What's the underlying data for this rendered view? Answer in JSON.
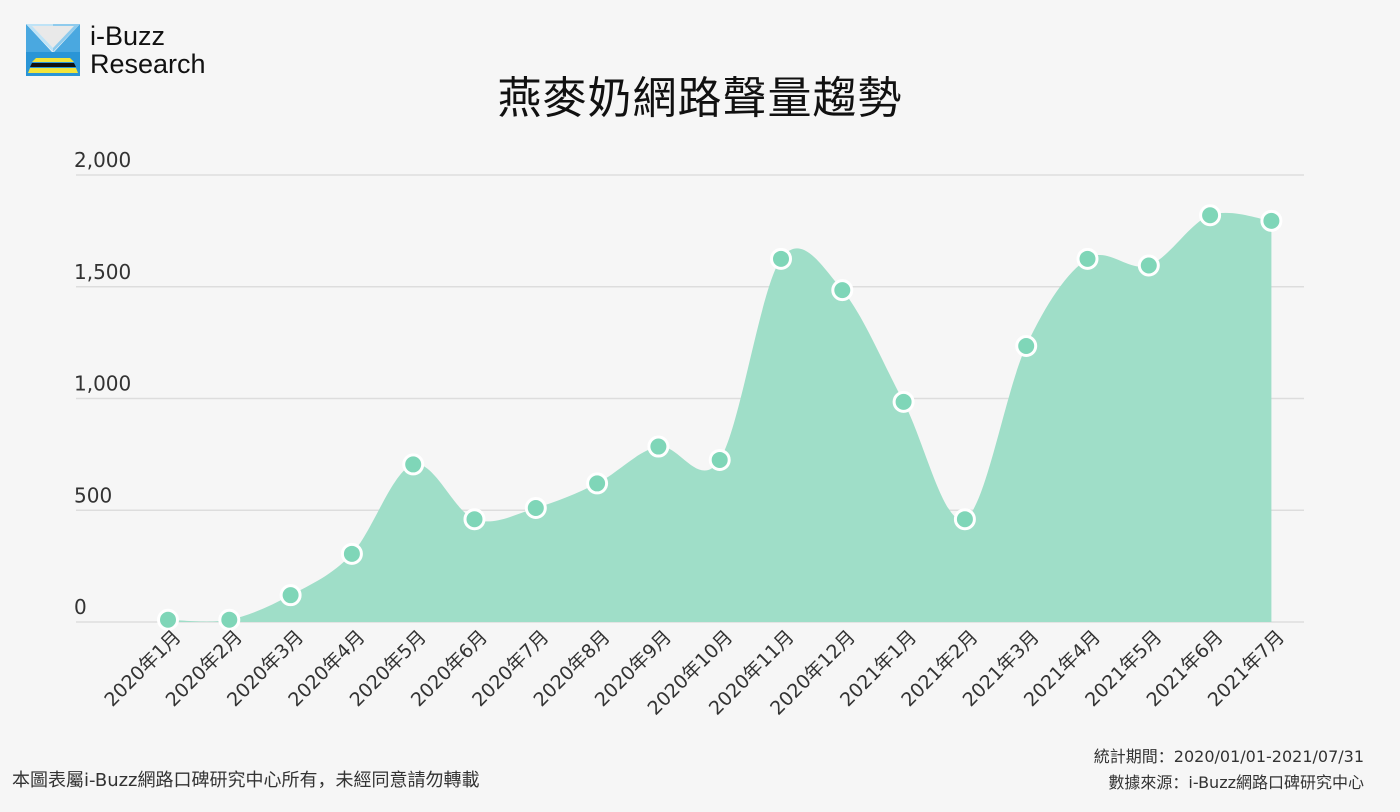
{
  "logo": {
    "line1": "i-Buzz",
    "line2": "Research"
  },
  "footer": {
    "copyright": "本圖表屬i-Buzz網路口碑研究中心所有，未經同意請勿轉載",
    "period": "統計期間：2020/01/01-2021/07/31",
    "source": "數據來源：i-Buzz網路口碑研究中心"
  },
  "colors": {
    "area": "#9fdec8",
    "marker": "#7fd6b8",
    "grid": "#dddddd"
  },
  "chart_data": {
    "type": "area",
    "title": "燕麥奶網路聲量趨勢",
    "categories": [
      "2020年1月",
      "2020年2月",
      "2020年3月",
      "2020年4月",
      "2020年5月",
      "2020年6月",
      "2020年7月",
      "2020年8月",
      "2020年9月",
      "2020年10月",
      "2020年11月",
      "2020年12月",
      "2021年1月",
      "2021年2月",
      "2021年3月",
      "2021年4月",
      "2021年5月",
      "2021年6月",
      "2021年7月"
    ],
    "values": [
      10,
      10,
      120,
      305,
      705,
      460,
      510,
      620,
      785,
      725,
      1625,
      1485,
      985,
      460,
      1235,
      1625,
      1595,
      1820,
      1795
    ],
    "ylim": [
      0,
      2000
    ],
    "yticks": [
      "0",
      "500",
      "1,000",
      "1,500",
      "2,000"
    ],
    "ytick_values": [
      0,
      500,
      1000,
      1500,
      2000
    ],
    "grid": true,
    "legend": "none"
  }
}
